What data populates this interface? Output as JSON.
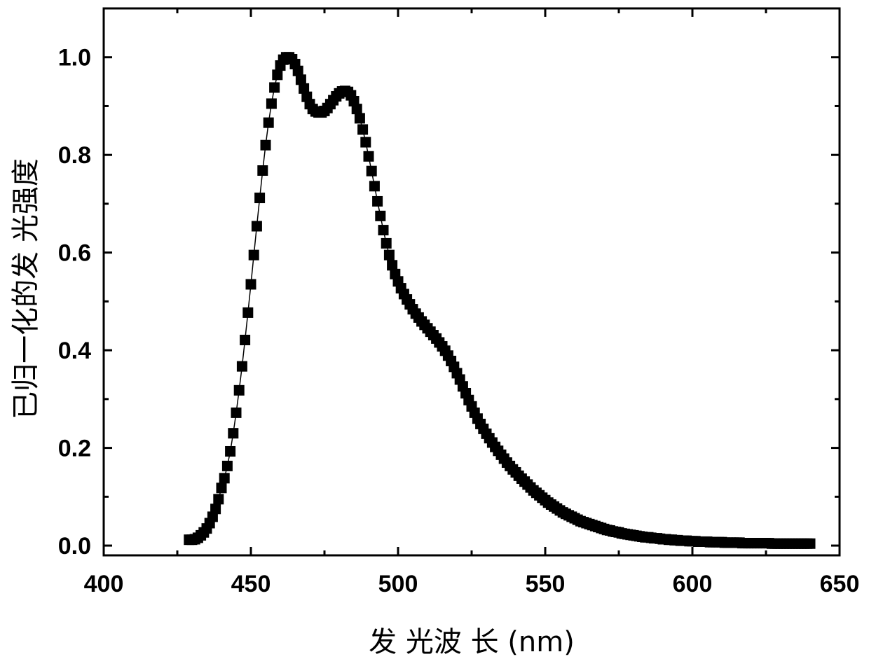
{
  "chart_data": {
    "type": "scatter",
    "title": "",
    "xlabel": "发 光波 长 (nm)",
    "ylabel": "已归一化的发 光强度",
    "xlim": [
      400,
      650
    ],
    "ylim": [
      -0.02,
      1.1
    ],
    "xticks": [
      "400",
      "450",
      "500",
      "550",
      "600",
      "650"
    ],
    "yticks": [
      "0.0",
      "0.2",
      "0.4",
      "0.6",
      "0.8",
      "1.0"
    ],
    "marker": "square",
    "color": "#000000",
    "connecting_line": true,
    "grid": false,
    "legend": "none",
    "series": [
      {
        "x": [
          429,
          430,
          431,
          432,
          433,
          434,
          435,
          436,
          437,
          438,
          439,
          440,
          441,
          442,
          443,
          444,
          445,
          446,
          447,
          448,
          449,
          450,
          451,
          452,
          453,
          454,
          455,
          456,
          457,
          458,
          459,
          460,
          461,
          462,
          463,
          464,
          465,
          466,
          467,
          468,
          469,
          470,
          471,
          472,
          473,
          474,
          475,
          476,
          477,
          478,
          479,
          480,
          481,
          482,
          483,
          484,
          485,
          486,
          487,
          488,
          489,
          490,
          491,
          492,
          493,
          494,
          495,
          496,
          497,
          498,
          499,
          500,
          501,
          502,
          503,
          504,
          505,
          506,
          507,
          508,
          509,
          510,
          511,
          512,
          513,
          514,
          515,
          516,
          517,
          518,
          519,
          520,
          521,
          522,
          523,
          524,
          525,
          526,
          527,
          528,
          529,
          530,
          531,
          532,
          533,
          534,
          535,
          536,
          537,
          538,
          539,
          540,
          541,
          542,
          543,
          544,
          545,
          546,
          547,
          548,
          549,
          550,
          551,
          552,
          553,
          554,
          555,
          556,
          557,
          558,
          559,
          560,
          561,
          562,
          563,
          564,
          565,
          566,
          567,
          568,
          569,
          570,
          571,
          572,
          573,
          574,
          575,
          576,
          577,
          578,
          579,
          580,
          581,
          582,
          583,
          584,
          585,
          586,
          587,
          588,
          589,
          590,
          591,
          592,
          593,
          594,
          595,
          596,
          597,
          598,
          599,
          600,
          601,
          602,
          603,
          604,
          605,
          606,
          607,
          608,
          609,
          610,
          611,
          612,
          613,
          614,
          615,
          616,
          617,
          618,
          619,
          620,
          621,
          622,
          623,
          624,
          625,
          626,
          627,
          628,
          629,
          630,
          631,
          632,
          633,
          634,
          635,
          636,
          637,
          638,
          639,
          640
        ],
        "y": [
          0.012,
          0.012,
          0.013,
          0.016,
          0.021,
          0.027,
          0.035,
          0.046,
          0.059,
          0.075,
          0.095,
          0.118,
          0.138,
          0.163,
          0.193,
          0.23,
          0.272,
          0.318,
          0.367,
          0.421,
          0.477,
          0.535,
          0.595,
          0.654,
          0.712,
          0.768,
          0.82,
          0.866,
          0.905,
          0.938,
          0.964,
          0.983,
          0.995,
          1.0,
          1.0,
          0.996,
          0.986,
          0.972,
          0.954,
          0.936,
          0.919,
          0.904,
          0.894,
          0.889,
          0.887,
          0.887,
          0.89,
          0.896,
          0.904,
          0.912,
          0.92,
          0.926,
          0.93,
          0.931,
          0.929,
          0.922,
          0.91,
          0.894,
          0.875,
          0.852,
          0.826,
          0.797,
          0.767,
          0.736,
          0.705,
          0.675,
          0.646,
          0.619,
          0.595,
          0.574,
          0.556,
          0.541,
          0.527,
          0.515,
          0.504,
          0.494,
          0.484,
          0.475,
          0.467,
          0.459,
          0.452,
          0.445,
          0.438,
          0.431,
          0.424,
          0.416,
          0.408,
          0.399,
          0.389,
          0.378,
          0.366,
          0.353,
          0.34,
          0.326,
          0.312,
          0.298,
          0.285,
          0.272,
          0.26,
          0.249,
          0.239,
          0.229,
          0.22,
          0.211,
          0.202,
          0.194,
          0.186,
          0.178,
          0.17,
          0.163,
          0.156,
          0.15,
          0.143,
          0.137,
          0.131,
          0.125,
          0.119,
          0.113,
          0.108,
          0.103,
          0.098,
          0.093,
          0.088,
          0.084,
          0.08,
          0.076,
          0.072,
          0.068,
          0.065,
          0.062,
          0.059,
          0.056,
          0.053,
          0.05,
          0.048,
          0.046,
          0.044,
          0.042,
          0.04,
          0.038,
          0.036,
          0.034,
          0.032,
          0.031,
          0.029,
          0.028,
          0.027,
          0.025,
          0.024,
          0.023,
          0.022,
          0.021,
          0.02,
          0.019,
          0.018,
          0.017,
          0.017,
          0.016,
          0.015,
          0.015,
          0.014,
          0.013,
          0.013,
          0.012,
          0.012,
          0.011,
          0.011,
          0.01,
          0.01,
          0.01,
          0.009,
          0.009,
          0.009,
          0.008,
          0.008,
          0.008,
          0.008,
          0.007,
          0.007,
          0.007,
          0.007,
          0.007,
          0.006,
          0.006,
          0.006,
          0.006,
          0.006,
          0.006,
          0.005,
          0.005,
          0.005,
          0.005,
          0.005,
          0.005,
          0.005,
          0.005,
          0.005,
          0.005,
          0.004,
          0.004,
          0.004,
          0.004,
          0.004,
          0.004,
          0.004,
          0.004,
          0.004,
          0.004,
          0.004,
          0.004,
          0.004,
          0.004
        ]
      }
    ]
  }
}
